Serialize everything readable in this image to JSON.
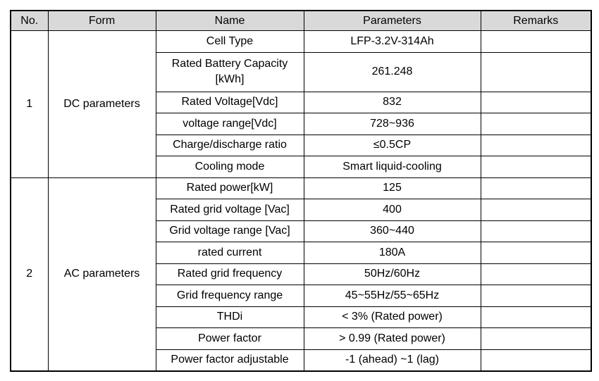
{
  "table": {
    "header": [
      "No.",
      "Form",
      "Name",
      "Parameters",
      "Remarks"
    ],
    "groups": [
      {
        "no": "1",
        "form": "DC parameters",
        "rows": [
          {
            "name": "Cell Type",
            "parameter": "LFP-3.2V-314Ah"
          },
          {
            "name": "Rated Battery Capacity [kWh]",
            "parameter": "261.248"
          },
          {
            "name": "Rated Voltage[Vdc]",
            "parameter": "832"
          },
          {
            "name": "voltage range[Vdc]",
            "parameter": "728~936"
          },
          {
            "name": "Charge/discharge ratio",
            "parameter": "≤0.5CP"
          },
          {
            "name": "Cooling mode",
            "parameter": "Smart liquid-cooling"
          }
        ]
      },
      {
        "no": "2",
        "form": "AC parameters",
        "rows": [
          {
            "name": "Rated power[kW]",
            "parameter": "125"
          },
          {
            "name": "Rated grid voltage [Vac]",
            "parameter": "400"
          },
          {
            "name": "Grid voltage range [Vac]",
            "parameter": "360~440"
          },
          {
            "name": "rated current",
            "parameter": "180A"
          },
          {
            "name": "Rated grid frequency",
            "parameter": "50Hz/60Hz"
          },
          {
            "name": "Grid frequency range",
            "parameter": "45~55Hz/55~65Hz"
          },
          {
            "name": "THDi",
            "parameter": "< 3%  (Rated power)"
          },
          {
            "name": "Power factor",
            "parameter": "> 0.99  (Rated power)"
          },
          {
            "name": "Power factor adjustable",
            "parameter": "-1  (ahead)  ~1  (lag)"
          }
        ]
      }
    ]
  }
}
